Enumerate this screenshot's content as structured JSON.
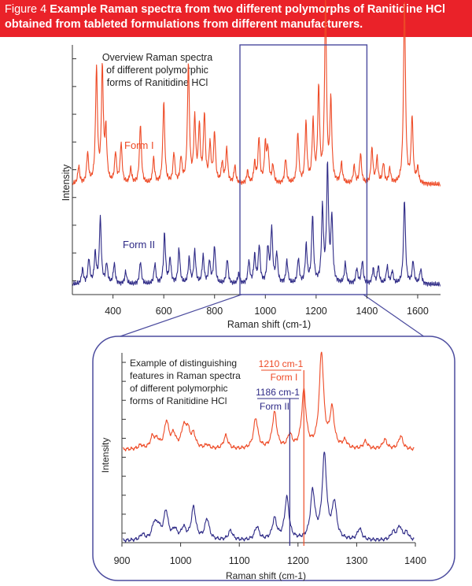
{
  "caption": {
    "figure_number": "Figure 4",
    "text": "Example Raman spectra from two different polymorphs of Ranitidine HCl obtained from tableted formulations from different manufacturers."
  },
  "colors": {
    "banner": "#ea2229",
    "form_i": "#ee4a26",
    "form_ii": "#2e2a86",
    "box": "#4b4b9e",
    "axis": "#333333"
  },
  "chart_data": [
    {
      "type": "line",
      "panel": "overview",
      "title": "Overview Raman spectra of different polymorphic forms of Ranitidine HCl",
      "title_lines": [
        "Overview Raman spectra",
        "of different polymorphic",
        "forms of Ranitidine HCl"
      ],
      "xlabel": "Raman shift (cm-1)",
      "ylabel": "Intensity",
      "xlim": [
        240,
        1690
      ],
      "ylim": [
        0,
        1
      ],
      "xticks": [
        400,
        600,
        800,
        1000,
        1200,
        1400,
        1600
      ],
      "xtick_labels": [
        "400",
        "600",
        "800",
        "1000",
        "1200",
        "1400",
        "1600"
      ],
      "yticks_count": 9,
      "zoom_region": [
        900,
        1400
      ],
      "series": [
        {
          "name": "Form I",
          "color": "#ee4a26",
          "baseline": 0.44,
          "peaks": [
            [
              265,
              0.07
            ],
            [
              300,
              0.12
            ],
            [
              335,
              0.46
            ],
            [
              358,
              0.45
            ],
            [
              372,
              0.2
            ],
            [
              410,
              0.12
            ],
            [
              432,
              0.16
            ],
            [
              470,
              0.06
            ],
            [
              508,
              0.24
            ],
            [
              560,
              0.1
            ],
            [
              600,
              0.33
            ],
            [
              640,
              0.12
            ],
            [
              668,
              0.1
            ],
            [
              697,
              0.48
            ],
            [
              722,
              0.25
            ],
            [
              740,
              0.22
            ],
            [
              760,
              0.27
            ],
            [
              782,
              0.15
            ],
            [
              800,
              0.2
            ],
            [
              830,
              0.08
            ],
            [
              848,
              0.14
            ],
            [
              880,
              0.07
            ],
            [
              930,
              0.05
            ],
            [
              958,
              0.08
            ],
            [
              975,
              0.18
            ],
            [
              1000,
              0.15
            ],
            [
              1010,
              0.13
            ],
            [
              1030,
              0.07
            ],
            [
              1080,
              0.1
            ],
            [
              1128,
              0.2
            ],
            [
              1160,
              0.24
            ],
            [
              1188,
              0.24
            ],
            [
              1210,
              0.37
            ],
            [
              1237,
              0.72
            ],
            [
              1258,
              0.32
            ],
            [
              1300,
              0.08
            ],
            [
              1350,
              0.07
            ],
            [
              1375,
              0.12
            ],
            [
              1420,
              0.14
            ],
            [
              1440,
              0.1
            ],
            [
              1465,
              0.08
            ],
            [
              1490,
              0.06
            ],
            [
              1548,
              0.74
            ],
            [
              1578,
              0.26
            ],
            [
              1600,
              0.06
            ]
          ]
        },
        {
          "name": "Form II",
          "color": "#2e2a86",
          "baseline": 0.04,
          "peaks": [
            [
              280,
              0.06
            ],
            [
              305,
              0.1
            ],
            [
              330,
              0.12
            ],
            [
              350,
              0.26
            ],
            [
              375,
              0.08
            ],
            [
              405,
              0.08
            ],
            [
              450,
              0.05
            ],
            [
              508,
              0.09
            ],
            [
              565,
              0.08
            ],
            [
              603,
              0.2
            ],
            [
              625,
              0.1
            ],
            [
              660,
              0.14
            ],
            [
              700,
              0.1
            ],
            [
              722,
              0.13
            ],
            [
              755,
              0.11
            ],
            [
              780,
              0.09
            ],
            [
              800,
              0.15
            ],
            [
              850,
              0.1
            ],
            [
              895,
              0.04
            ],
            [
              935,
              0.09
            ],
            [
              958,
              0.11
            ],
            [
              976,
              0.15
            ],
            [
              1010,
              0.14
            ],
            [
              1025,
              0.22
            ],
            [
              1045,
              0.12
            ],
            [
              1085,
              0.09
            ],
            [
              1130,
              0.1
            ],
            [
              1161,
              0.15
            ],
            [
              1186,
              0.27
            ],
            [
              1225,
              0.3
            ],
            [
              1245,
              0.46
            ],
            [
              1262,
              0.26
            ],
            [
              1315,
              0.08
            ],
            [
              1360,
              0.06
            ],
            [
              1382,
              0.09
            ],
            [
              1425,
              0.06
            ],
            [
              1445,
              0.07
            ],
            [
              1480,
              0.07
            ],
            [
              1500,
              0.05
            ],
            [
              1548,
              0.34
            ],
            [
              1582,
              0.09
            ],
            [
              1612,
              0.06
            ]
          ]
        }
      ],
      "labels": [
        "Form I",
        "Form II"
      ]
    },
    {
      "type": "line",
      "panel": "zoom",
      "title": "Example of distinguishing features in Raman spectra of different polymorphic forms of Ranitidine HCl",
      "title_lines": [
        "Example of distinguishing",
        "features in Raman spectra",
        "of different polymorphic",
        "forms of Ranitidine HCl"
      ],
      "xlabel": "Raman shift (cm-1)",
      "ylabel": "Intensity",
      "xlim": [
        900,
        1400
      ],
      "ylim": [
        0,
        1
      ],
      "xticks": [
        900,
        1000,
        1100,
        1200,
        1300,
        1400
      ],
      "xtick_labels": [
        "900",
        "1000",
        "1100",
        "1200",
        "1300",
        "1400"
      ],
      "yticks_count": 10,
      "series": [
        {
          "name": "Form I",
          "color": "#ee4a26",
          "baseline": 0.49,
          "peaks": [
            [
              932,
              0.02
            ],
            [
              952,
              0.06
            ],
            [
              960,
              0.04
            ],
            [
              976,
              0.14
            ],
            [
              988,
              0.07
            ],
            [
              1005,
              0.1
            ],
            [
              1012,
              0.09
            ],
            [
              1022,
              0.07
            ],
            [
              1045,
              0.02
            ],
            [
              1077,
              0.07
            ],
            [
              1128,
              0.16
            ],
            [
              1160,
              0.19
            ],
            [
              1186,
              0.07
            ],
            [
              1210,
              0.3
            ],
            [
              1240,
              0.5
            ],
            [
              1258,
              0.2
            ],
            [
              1280,
              0.04
            ],
            [
              1315,
              0.04
            ],
            [
              1348,
              0.05
            ],
            [
              1375,
              0.07
            ]
          ]
        },
        {
          "name": "Form II",
          "color": "#2e2a86",
          "baseline": 0.01,
          "peaks": [
            [
              935,
              0.03
            ],
            [
              955,
              0.08
            ],
            [
              962,
              0.06
            ],
            [
              975,
              0.15
            ],
            [
              990,
              0.05
            ],
            [
              1005,
              0.06
            ],
            [
              1022,
              0.17
            ],
            [
              1045,
              0.11
            ],
            [
              1085,
              0.05
            ],
            [
              1130,
              0.07
            ],
            [
              1160,
              0.11
            ],
            [
              1181,
              0.22
            ],
            [
              1225,
              0.25
            ],
            [
              1245,
              0.44
            ],
            [
              1262,
              0.19
            ],
            [
              1305,
              0.06
            ],
            [
              1362,
              0.04
            ],
            [
              1373,
              0.07
            ],
            [
              1385,
              0.04
            ]
          ]
        }
      ],
      "markers": [
        {
          "label": "1210 cm-1",
          "form": "Form I",
          "x": 1210
        },
        {
          "label": "1186 cm-1",
          "form": "Form II",
          "x": 1186
        }
      ]
    }
  ]
}
